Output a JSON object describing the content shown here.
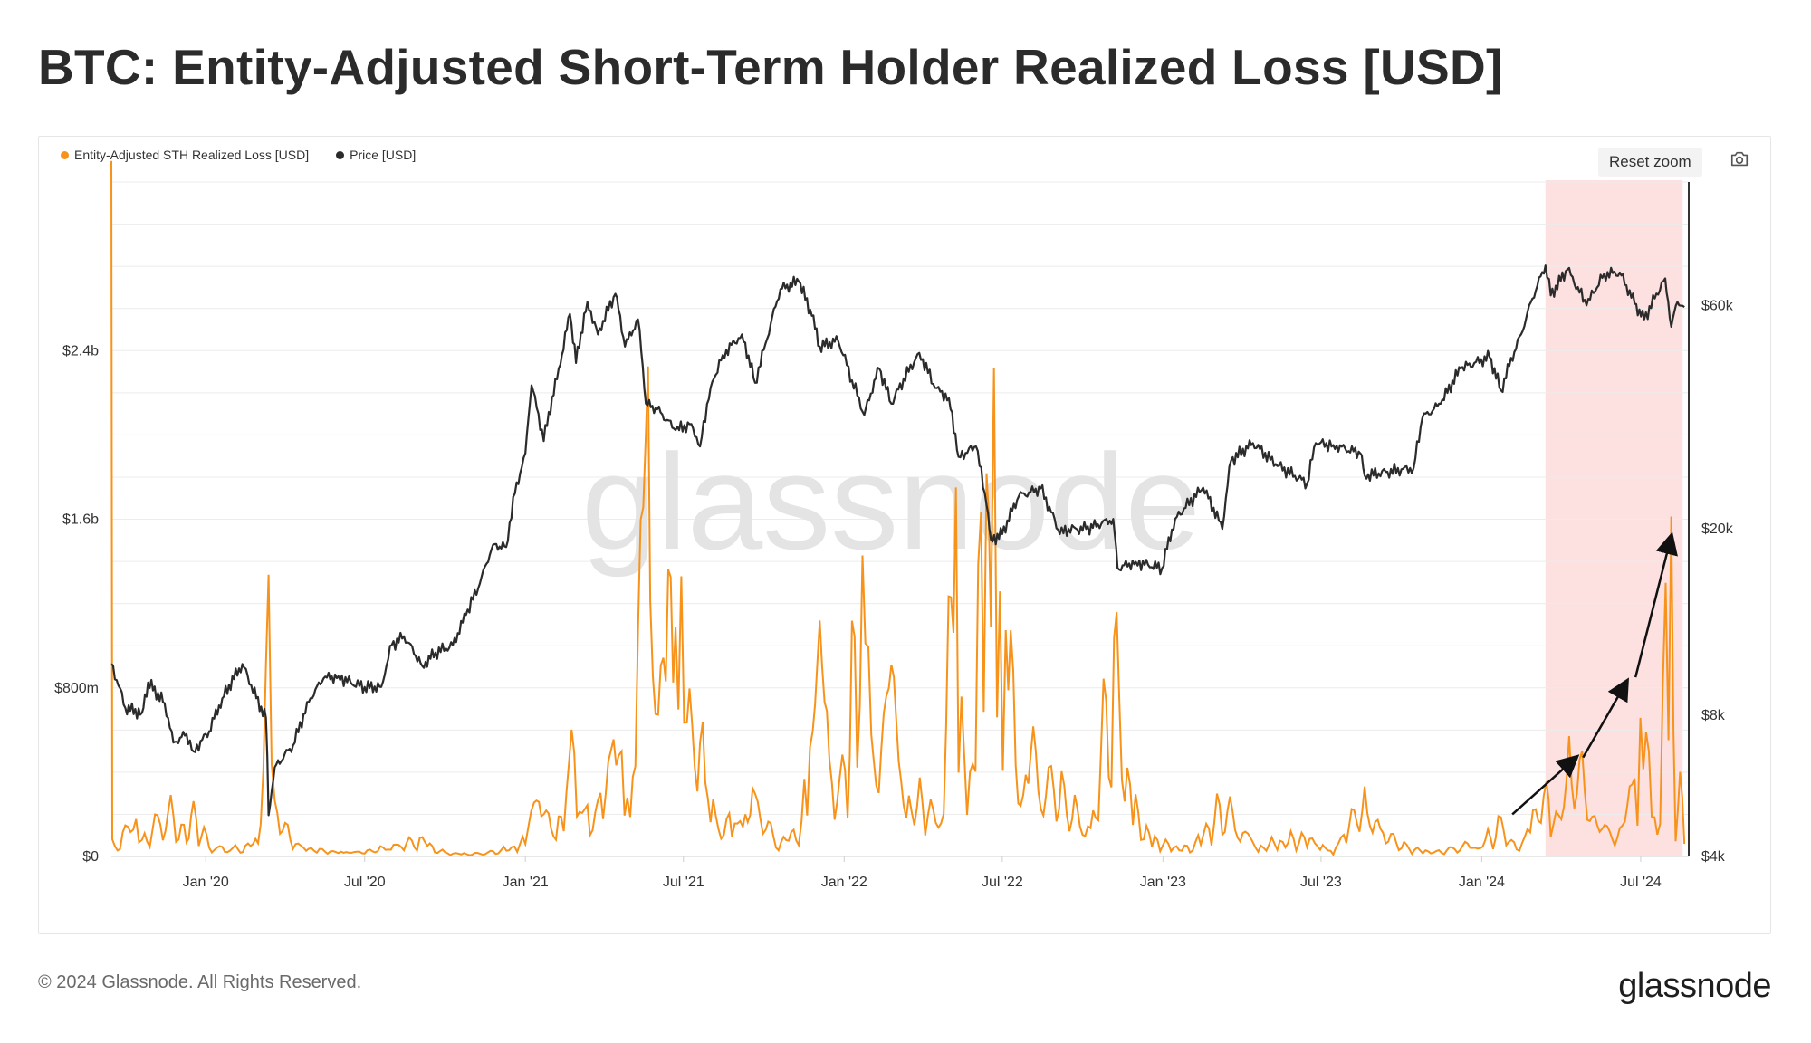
{
  "header": {
    "title": "BTC: Entity-Adjusted Short-Term Holder Realized Loss [USD]"
  },
  "toolbar": {
    "reset_zoom_label": "Reset zoom",
    "camera_icon": "camera-icon"
  },
  "footer": {
    "copyright": "© 2024 Glassnode. All Rights Reserved.",
    "logo_text": "glassnode"
  },
  "watermark": "glassnode",
  "colors": {
    "loss": "#f7931a",
    "price": "#2b2b2b",
    "highlight": "#fde0e0",
    "grid": "#ececec",
    "annotation": "#111111"
  },
  "chart_data": {
    "type": "line",
    "title": "BTC: Entity-Adjusted Short-Term Holder Realized Loss [USD]",
    "legend": [
      {
        "name": "Entity-Adjusted STH Realized Loss [USD]",
        "color": "#f7931a"
      },
      {
        "name": "Price [USD]",
        "color": "#2b2b2b"
      }
    ],
    "legend_position": "top-left",
    "x_range": [
      "2019-09-15",
      "2024-08-25"
    ],
    "x_ticks": [
      {
        "date": "2020-01-01",
        "label": "Jan '20"
      },
      {
        "date": "2020-07-01",
        "label": "Jul '20"
      },
      {
        "date": "2021-01-01",
        "label": "Jan '21"
      },
      {
        "date": "2021-07-01",
        "label": "Jul '21"
      },
      {
        "date": "2022-01-01",
        "label": "Jan '22"
      },
      {
        "date": "2022-07-01",
        "label": "Jul '22"
      },
      {
        "date": "2023-01-01",
        "label": "Jan '23"
      },
      {
        "date": "2023-07-01",
        "label": "Jul '23"
      },
      {
        "date": "2024-01-01",
        "label": "Jan '24"
      },
      {
        "date": "2024-07-01",
        "label": "Jul '24"
      }
    ],
    "left_axis": {
      "label": "Entity-Adjusted STH Realized Loss [USD]",
      "scale": "linear",
      "range": [
        0,
        3200000000
      ],
      "ticks": [
        {
          "value": 0,
          "label": "$0"
        },
        {
          "value": 800000000,
          "label": "$800m"
        },
        {
          "value": 1600000000,
          "label": "$1.6b"
        },
        {
          "value": 2400000000,
          "label": "$2.4b"
        }
      ]
    },
    "right_axis": {
      "label": "Price [USD]",
      "scale": "log",
      "range": [
        4000,
        110000
      ],
      "ticks": [
        {
          "value": 4000,
          "label": "$4k"
        },
        {
          "value": 8000,
          "label": "$8k"
        },
        {
          "value": 20000,
          "label": "$20k"
        },
        {
          "value": 60000,
          "label": "$60k"
        }
      ]
    },
    "grid": true,
    "highlight_region": {
      "start": "2024-03-14",
      "end": "2024-08-18"
    },
    "annotation_arrows": [
      {
        "from": [
          "2024-02-05",
          200000000
        ],
        "to": [
          "2024-04-18",
          470000000
        ]
      },
      {
        "from": [
          "2024-04-26",
          470000000
        ],
        "to": [
          "2024-06-15",
          830000000
        ]
      },
      {
        "from": [
          "2024-06-25",
          850000000
        ],
        "to": [
          "2024-08-05",
          1520000000
        ]
      }
    ],
    "series": [
      {
        "name": "Price [USD]",
        "axis": "right",
        "points": [
          [
            "2019-09-15",
            10300
          ],
          [
            "2019-10-01",
            8300
          ],
          [
            "2019-10-20",
            8100
          ],
          [
            "2019-10-27",
            9400
          ],
          [
            "2019-11-15",
            8500
          ],
          [
            "2019-11-25",
            7000
          ],
          [
            "2019-12-10",
            7300
          ],
          [
            "2019-12-18",
            6700
          ],
          [
            "2020-01-05",
            7400
          ],
          [
            "2020-01-20",
            8700
          ],
          [
            "2020-02-12",
            10300
          ],
          [
            "2020-02-28",
            8700
          ],
          [
            "2020-03-10",
            7900
          ],
          [
            "2020-03-13",
            4900
          ],
          [
            "2020-03-20",
            6200
          ],
          [
            "2020-04-10",
            6900
          ],
          [
            "2020-04-30",
            8700
          ],
          [
            "2020-05-15",
            9600
          ],
          [
            "2020-06-01",
            9700
          ],
          [
            "2020-06-15",
            9400
          ],
          [
            "2020-07-01",
            9200
          ],
          [
            "2020-07-20",
            9200
          ],
          [
            "2020-08-01",
            11300
          ],
          [
            "2020-08-15",
            11800
          ],
          [
            "2020-09-05",
            10200
          ],
          [
            "2020-09-20",
            10900
          ],
          [
            "2020-10-10",
            11300
          ],
          [
            "2020-10-25",
            13100
          ],
          [
            "2020-11-10",
            15300
          ],
          [
            "2020-11-25",
            18500
          ],
          [
            "2020-12-10",
            18300
          ],
          [
            "2020-12-20",
            23800
          ],
          [
            "2021-01-01",
            29000
          ],
          [
            "2021-01-08",
            40500
          ],
          [
            "2021-01-22",
            30800
          ],
          [
            "2021-02-10",
            44800
          ],
          [
            "2021-02-21",
            57500
          ],
          [
            "2021-02-28",
            45200
          ],
          [
            "2021-03-13",
            61000
          ],
          [
            "2021-03-25",
            52000
          ],
          [
            "2021-04-14",
            63500
          ],
          [
            "2021-04-25",
            49000
          ],
          [
            "2021-05-10",
            56000
          ],
          [
            "2021-05-19",
            37000
          ],
          [
            "2021-06-01",
            36000
          ],
          [
            "2021-06-22",
            32500
          ],
          [
            "2021-07-10",
            33500
          ],
          [
            "2021-07-20",
            30000
          ],
          [
            "2021-08-01",
            40000
          ],
          [
            "2021-08-15",
            47000
          ],
          [
            "2021-09-06",
            52000
          ],
          [
            "2021-09-21",
            41000
          ],
          [
            "2021-10-05",
            51000
          ],
          [
            "2021-10-20",
            65000
          ],
          [
            "2021-11-10",
            67500
          ],
          [
            "2021-11-25",
            57000
          ],
          [
            "2021-12-04",
            49000
          ],
          [
            "2021-12-25",
            50500
          ],
          [
            "2022-01-10",
            41500
          ],
          [
            "2022-01-24",
            35000
          ],
          [
            "2022-02-10",
            44000
          ],
          [
            "2022-02-24",
            37000
          ],
          [
            "2022-03-28",
            47500
          ],
          [
            "2022-04-15",
            40000
          ],
          [
            "2022-05-01",
            38000
          ],
          [
            "2022-05-12",
            28500
          ],
          [
            "2022-06-01",
            30000
          ],
          [
            "2022-06-13",
            22500
          ],
          [
            "2022-06-18",
            19000
          ],
          [
            "2022-07-01",
            19500
          ],
          [
            "2022-07-20",
            23500
          ],
          [
            "2022-08-14",
            24400
          ],
          [
            "2022-09-05",
            19500
          ],
          [
            "2022-09-15",
            20000
          ],
          [
            "2022-10-05",
            20000
          ],
          [
            "2022-11-05",
            21000
          ],
          [
            "2022-11-10",
            16500
          ],
          [
            "2022-12-01",
            17000
          ],
          [
            "2022-12-31",
            16500
          ],
          [
            "2023-01-15",
            21000
          ],
          [
            "2023-02-16",
            24500
          ],
          [
            "2023-03-10",
            20000
          ],
          [
            "2023-03-20",
            28000
          ],
          [
            "2023-04-14",
            30500
          ],
          [
            "2023-05-10",
            27500
          ],
          [
            "2023-06-15",
            25000
          ],
          [
            "2023-06-25",
            30500
          ],
          [
            "2023-07-15",
            30200
          ],
          [
            "2023-08-15",
            29000
          ],
          [
            "2023-08-20",
            26000
          ],
          [
            "2023-09-15",
            26500
          ],
          [
            "2023-10-15",
            27000
          ],
          [
            "2023-10-25",
            34500
          ],
          [
            "2023-11-15",
            37000
          ],
          [
            "2023-12-08",
            44000
          ],
          [
            "2024-01-10",
            46500
          ],
          [
            "2024-01-23",
            39500
          ],
          [
            "2024-02-15",
            52000
          ],
          [
            "2024-02-28",
            62000
          ],
          [
            "2024-03-14",
            73000
          ],
          [
            "2024-03-20",
            63000
          ],
          [
            "2024-04-08",
            71500
          ],
          [
            "2024-04-30",
            60000
          ],
          [
            "2024-05-20",
            70000
          ],
          [
            "2024-06-07",
            70500
          ],
          [
            "2024-06-24",
            60500
          ],
          [
            "2024-07-05",
            56000
          ],
          [
            "2024-07-29",
            68500
          ],
          [
            "2024-08-05",
            54000
          ],
          [
            "2024-08-12",
            61000
          ],
          [
            "2024-08-20",
            59500
          ]
        ]
      },
      {
        "name": "Entity-Adjusted STH Realized Loss [USD]",
        "axis": "left",
        "points": [
          [
            "2019-09-15",
            3250000000
          ],
          [
            "2019-09-16",
            60000000
          ],
          [
            "2019-09-25",
            50000000
          ],
          [
            "2019-10-10",
            190000000
          ],
          [
            "2019-10-20",
            60000000
          ],
          [
            "2019-11-01",
            130000000
          ],
          [
            "2019-11-25",
            180000000
          ],
          [
            "2019-12-10",
            60000000
          ],
          [
            "2019-12-18",
            200000000
          ],
          [
            "2020-01-05",
            40000000
          ],
          [
            "2020-02-01",
            30000000
          ],
          [
            "2020-03-01",
            60000000
          ],
          [
            "2020-03-13",
            1000000000
          ],
          [
            "2020-03-20",
            220000000
          ],
          [
            "2020-04-10",
            60000000
          ],
          [
            "2020-05-01",
            30000000
          ],
          [
            "2020-06-01",
            20000000
          ],
          [
            "2020-07-01",
            20000000
          ],
          [
            "2020-09-05",
            70000000
          ],
          [
            "2020-10-01",
            15000000
          ],
          [
            "2020-11-01",
            10000000
          ],
          [
            "2020-12-01",
            20000000
          ],
          [
            "2021-01-01",
            60000000
          ],
          [
            "2021-01-11",
            330000000
          ],
          [
            "2021-01-22",
            220000000
          ],
          [
            "2021-02-05",
            60000000
          ],
          [
            "2021-02-23",
            460000000
          ],
          [
            "2021-03-10",
            170000000
          ],
          [
            "2021-03-25",
            200000000
          ],
          [
            "2021-04-18",
            590000000
          ],
          [
            "2021-05-01",
            150000000
          ],
          [
            "2021-05-13",
            1200000000
          ],
          [
            "2021-05-19",
            2200000000
          ],
          [
            "2021-05-24",
            900000000
          ],
          [
            "2021-06-08",
            700000000
          ],
          [
            "2021-06-22",
            950000000
          ],
          [
            "2021-07-05",
            600000000
          ],
          [
            "2021-07-20",
            530000000
          ],
          [
            "2021-08-10",
            100000000
          ],
          [
            "2021-09-07",
            200000000
          ],
          [
            "2021-09-21",
            240000000
          ],
          [
            "2021-10-15",
            60000000
          ],
          [
            "2021-11-10",
            90000000
          ],
          [
            "2021-11-26",
            480000000
          ],
          [
            "2021-12-04",
            830000000
          ],
          [
            "2021-12-15",
            350000000
          ],
          [
            "2022-01-05",
            300000000
          ],
          [
            "2022-01-10",
            860000000
          ],
          [
            "2022-01-22",
            1100000000
          ],
          [
            "2022-02-01",
            500000000
          ],
          [
            "2022-02-24",
            680000000
          ],
          [
            "2022-03-10",
            250000000
          ],
          [
            "2022-04-10",
            200000000
          ],
          [
            "2022-04-25",
            150000000
          ],
          [
            "2022-05-09",
            1550000000
          ],
          [
            "2022-05-12",
            600000000
          ],
          [
            "2022-05-25",
            300000000
          ],
          [
            "2022-06-13",
            1450000000
          ],
          [
            "2022-06-18",
            2250000000
          ],
          [
            "2022-06-25",
            800000000
          ],
          [
            "2022-07-05",
            800000000
          ],
          [
            "2022-07-25",
            400000000
          ],
          [
            "2022-08-20",
            350000000
          ],
          [
            "2022-09-10",
            250000000
          ],
          [
            "2022-10-10",
            100000000
          ],
          [
            "2022-11-09",
            870000000
          ],
          [
            "2022-11-15",
            400000000
          ],
          [
            "2022-12-10",
            100000000
          ],
          [
            "2023-01-01",
            50000000
          ],
          [
            "2023-02-01",
            30000000
          ],
          [
            "2023-03-10",
            200000000
          ],
          [
            "2023-04-20",
            40000000
          ],
          [
            "2023-05-15",
            60000000
          ],
          [
            "2023-06-15",
            80000000
          ],
          [
            "2023-07-15",
            20000000
          ],
          [
            "2023-08-17",
            240000000
          ],
          [
            "2023-09-10",
            100000000
          ],
          [
            "2023-10-10",
            30000000
          ],
          [
            "2023-11-10",
            20000000
          ],
          [
            "2023-12-10",
            40000000
          ],
          [
            "2024-01-05",
            60000000
          ],
          [
            "2024-01-23",
            140000000
          ],
          [
            "2024-02-10",
            30000000
          ],
          [
            "2024-03-15",
            280000000
          ],
          [
            "2024-03-20",
            80000000
          ],
          [
            "2024-04-13",
            420000000
          ],
          [
            "2024-05-01",
            300000000
          ],
          [
            "2024-05-15",
            100000000
          ],
          [
            "2024-06-10",
            120000000
          ],
          [
            "2024-06-24",
            280000000
          ],
          [
            "2024-07-04",
            570000000
          ],
          [
            "2024-07-20",
            80000000
          ],
          [
            "2024-08-05",
            1320000000
          ],
          [
            "2024-08-10",
            150000000
          ],
          [
            "2024-08-15",
            320000000
          ],
          [
            "2024-08-20",
            50000000
          ]
        ]
      }
    ]
  }
}
